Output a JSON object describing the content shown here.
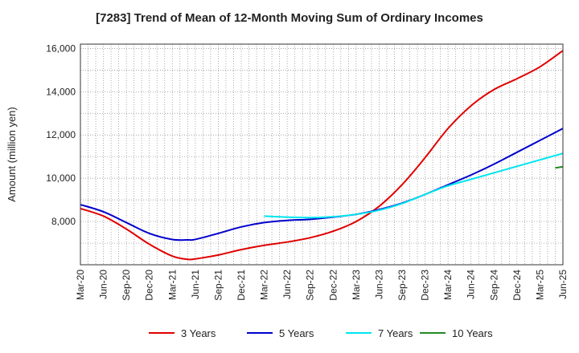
{
  "chart_data": {
    "type": "line",
    "title": "[7283]  Trend of Mean of 12-Month Moving Sum of Ordinary Incomes",
    "xlabel": "",
    "ylabel": "Amount (million yen)",
    "ylim": [
      6000,
      16200
    ],
    "yticks": [
      8000,
      10000,
      12000,
      14000,
      16000
    ],
    "ytick_labels": [
      "8,000",
      "10,000",
      "12,000",
      "14,000",
      "16,000"
    ],
    "x_start_month_index": 0,
    "x_end_month_index": 63,
    "xtick_labels": [
      "Mar-20",
      "Jun-20",
      "Sep-20",
      "Dec-20",
      "Mar-21",
      "Jun-21",
      "Sep-21",
      "Dec-21",
      "Mar-22",
      "Jun-22",
      "Sep-22",
      "Dec-22",
      "Mar-23",
      "Jun-23",
      "Sep-23",
      "Dec-23",
      "Mar-24",
      "Jun-24",
      "Sep-24",
      "Dec-24",
      "Mar-25",
      "Jun-25"
    ],
    "grid": true,
    "legend_position": "bottom",
    "series": [
      {
        "name": "3 Years",
        "color": "#e00000",
        "points": [
          [
            0,
            8600
          ],
          [
            3,
            8250
          ],
          [
            6,
            7650
          ],
          [
            9,
            6950
          ],
          [
            12,
            6400
          ],
          [
            14,
            6250
          ],
          [
            15,
            6270
          ],
          [
            18,
            6450
          ],
          [
            21,
            6700
          ],
          [
            24,
            6900
          ],
          [
            27,
            7050
          ],
          [
            30,
            7250
          ],
          [
            33,
            7550
          ],
          [
            36,
            8000
          ],
          [
            39,
            8700
          ],
          [
            42,
            9700
          ],
          [
            45,
            10950
          ],
          [
            48,
            12300
          ],
          [
            51,
            13350
          ],
          [
            54,
            14100
          ],
          [
            57,
            14600
          ],
          [
            60,
            15150
          ],
          [
            63,
            15900
          ]
        ]
      },
      {
        "name": "5 Years",
        "color": "#0000cc",
        "points": [
          [
            0,
            8780
          ],
          [
            3,
            8450
          ],
          [
            6,
            7950
          ],
          [
            9,
            7450
          ],
          [
            12,
            7170
          ],
          [
            14,
            7150
          ],
          [
            15,
            7170
          ],
          [
            18,
            7450
          ],
          [
            21,
            7750
          ],
          [
            24,
            7950
          ],
          [
            27,
            8050
          ],
          [
            30,
            8100
          ],
          [
            33,
            8200
          ],
          [
            36,
            8330
          ],
          [
            39,
            8550
          ],
          [
            42,
            8850
          ],
          [
            45,
            9250
          ],
          [
            48,
            9700
          ],
          [
            51,
            10150
          ],
          [
            54,
            10650
          ],
          [
            57,
            11200
          ],
          [
            60,
            11750
          ],
          [
            63,
            12300
          ]
        ]
      },
      {
        "name": "7 Years",
        "color": "#00e5ee",
        "points": [
          [
            24,
            8250
          ],
          [
            27,
            8200
          ],
          [
            30,
            8180
          ],
          [
            33,
            8220
          ],
          [
            36,
            8330
          ],
          [
            39,
            8520
          ],
          [
            42,
            8830
          ],
          [
            45,
            9250
          ],
          [
            48,
            9650
          ],
          [
            51,
            9950
          ],
          [
            54,
            10250
          ],
          [
            57,
            10550
          ],
          [
            60,
            10850
          ],
          [
            63,
            11150
          ]
        ]
      },
      {
        "name": "10 Years",
        "color": "#228b22",
        "points": [
          [
            62,
            10480
          ],
          [
            63,
            10530
          ]
        ]
      }
    ]
  }
}
